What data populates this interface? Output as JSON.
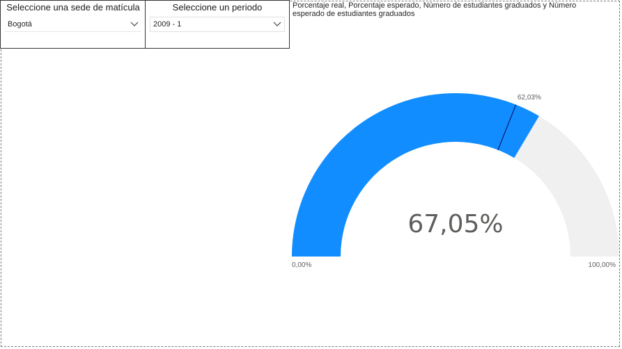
{
  "slicers": {
    "sede": {
      "title": "Seleccione una sede de matícula",
      "value": "Bogotá"
    },
    "periodo": {
      "title": "Seleccione un periodo",
      "value": "2009 - 1"
    }
  },
  "gauge": {
    "title": "Porcentaje real, Porcentaje esperado, Número de estudiantes graduados y Número esperado de estudiantes graduados",
    "value_label": "67,05%",
    "target_label": "62,03%",
    "min_label": "0,00%",
    "max_label": "100,00%"
  },
  "chart_data": {
    "type": "gauge",
    "value": 67.05,
    "target": 62.03,
    "min": 0,
    "max": 100,
    "fill_color": "#118dff",
    "track_color": "#f0f0f0",
    "target_color": "#0b1a6b"
  }
}
